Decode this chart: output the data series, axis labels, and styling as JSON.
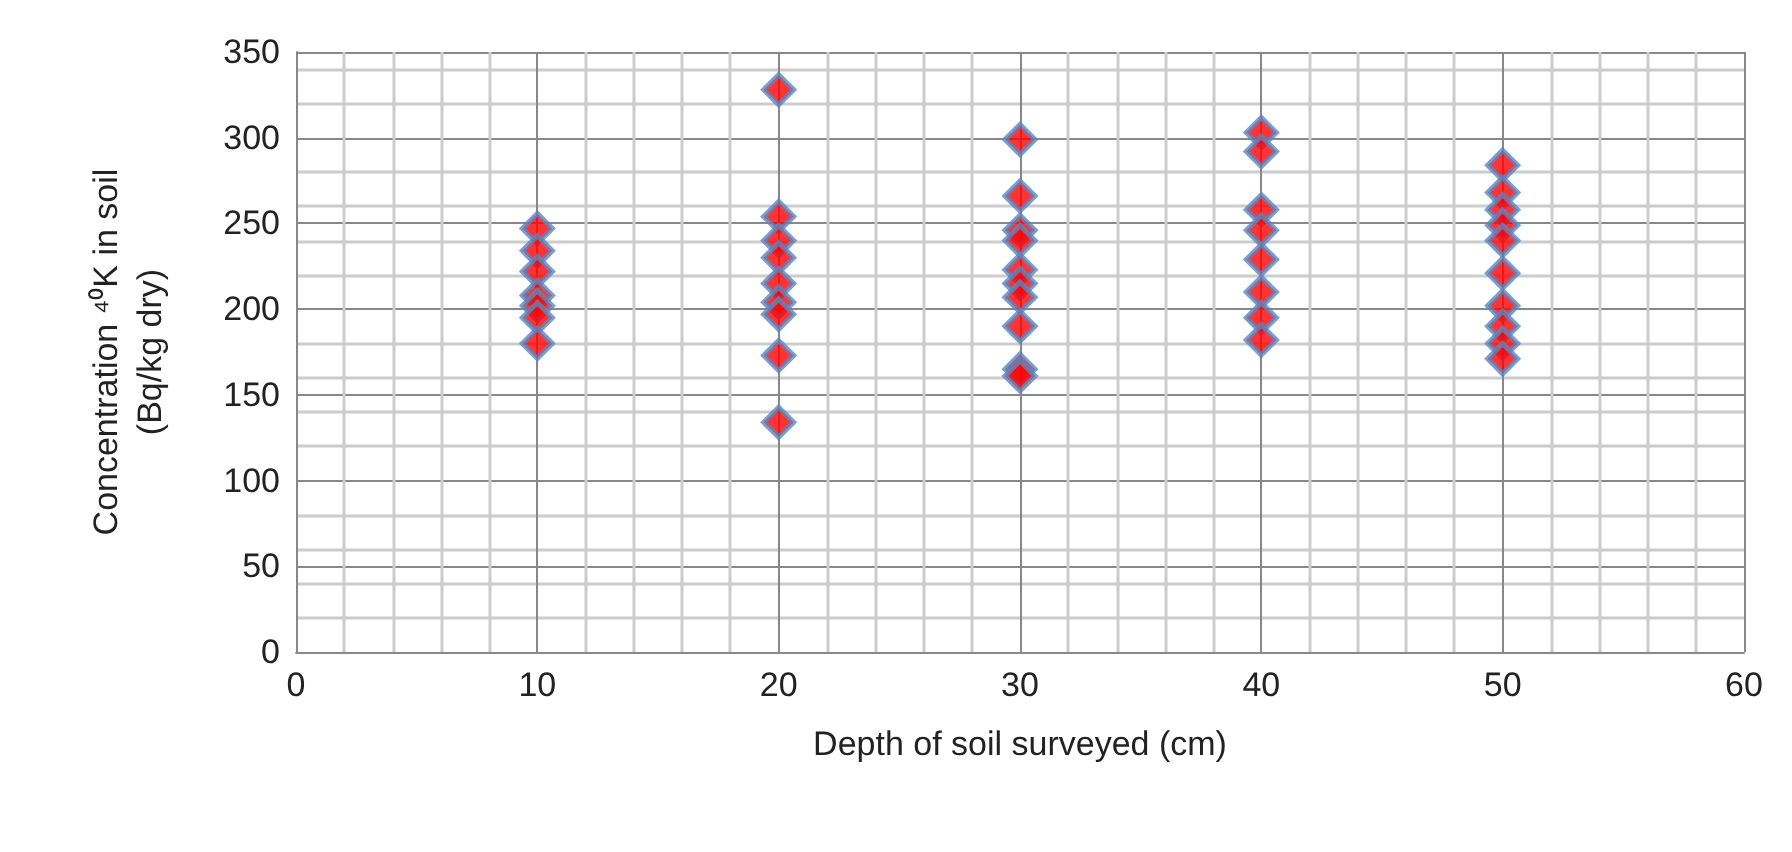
{
  "chart_data": {
    "type": "scatter",
    "xlabel": "Depth of soil surveyed (cm)",
    "ylabel": "Concentration ⁴⁰K in soil\n(Bq/kg dry)",
    "x": [
      10,
      10,
      10,
      10,
      10,
      10,
      10,
      20,
      20,
      20,
      20,
      20,
      20,
      20,
      20,
      20,
      30,
      30,
      30,
      30,
      30,
      30,
      30,
      30,
      30,
      30,
      40,
      40,
      40,
      40,
      40,
      40,
      40,
      40,
      50,
      50,
      50,
      50,
      50,
      50,
      50,
      50,
      50,
      50
    ],
    "values": [
      247,
      234,
      222,
      208,
      202,
      195,
      180,
      328,
      254,
      240,
      230,
      215,
      204,
      197,
      173,
      134,
      299,
      266,
      246,
      240,
      223,
      215,
      207,
      190,
      165,
      161,
      303,
      292,
      258,
      246,
      229,
      210,
      195,
      182,
      284,
      268,
      258,
      249,
      240,
      221,
      202,
      190,
      180,
      171
    ],
    "color": "#ff0000",
    "marker": "diamond",
    "xlim": [
      0,
      60
    ],
    "xticks": [
      0,
      10,
      20,
      30,
      40,
      50,
      60
    ],
    "ylim": [
      0,
      350
    ],
    "yticks": [
      0,
      50,
      100,
      150,
      200,
      250,
      300,
      350
    ],
    "grid": true
  }
}
